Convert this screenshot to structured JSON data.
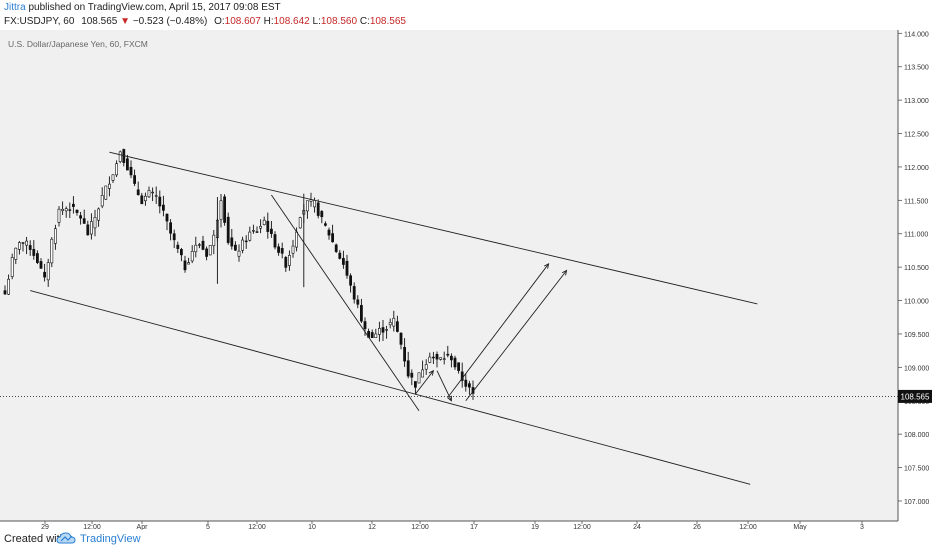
{
  "header": {
    "author": "Jittra",
    "published_text": "published on TradingView.com, April 15, 2017 09:08 EST",
    "symbol": "FX:USDJPY, 60",
    "last": "108.565",
    "change_arrow": "▼",
    "change": "−0.523 (−0.48%)",
    "o_label": "O:",
    "o": "108.607",
    "h_label": "H:",
    "h": "108.642",
    "l_label": "L:",
    "l": "108.560",
    "c_label": "C:",
    "c": "108.565"
  },
  "footer": {
    "created_with": "Created with",
    "brand": "TradingView",
    "logo_icon": "tradingview-cloud-icon"
  },
  "colors": {
    "background": "#f0f0f0",
    "candle": "#111111",
    "accent_blue": "#2a7fd4",
    "negative": "#c62828"
  },
  "chart_data": {
    "type": "candlestick",
    "title": "U.S. Dollar/Japanese Yen, 60, FXCM",
    "ylim": [
      106.7,
      114.05
    ],
    "y_ticks": [
      "114.000",
      "113.500",
      "113.000",
      "112.500",
      "112.000",
      "111.500",
      "111.000",
      "110.500",
      "110.000",
      "109.500",
      "109.000",
      "108.500",
      "108.000",
      "107.500",
      "107.000"
    ],
    "x_ticks": [
      "29",
      "12:00",
      "Apr",
      "5",
      "12:00",
      "10",
      "12",
      "12:00",
      "17",
      "19",
      "12:00",
      "24",
      "26",
      "12:00",
      "May",
      "3"
    ],
    "last_price_label": "108.565",
    "last_price": 108.565,
    "price_path": [
      [
        0,
        110.1
      ],
      [
        2,
        110.6
      ],
      [
        4,
        110.9
      ],
      [
        7,
        110.8
      ],
      [
        9,
        110.6
      ],
      [
        11,
        110.3
      ],
      [
        13,
        110.9
      ],
      [
        15,
        111.35
      ],
      [
        18,
        111.4
      ],
      [
        21,
        111.25
      ],
      [
        23,
        111.0
      ],
      [
        25,
        111.25
      ],
      [
        27,
        111.55
      ],
      [
        29,
        111.8
      ],
      [
        31,
        112.05
      ],
      [
        32,
        112.25
      ],
      [
        34,
        112.0
      ],
      [
        36,
        111.7
      ],
      [
        38,
        111.5
      ],
      [
        40,
        111.6
      ],
      [
        42,
        111.55
      ],
      [
        44,
        111.3
      ],
      [
        46,
        111.0
      ],
      [
        48,
        110.75
      ],
      [
        50,
        110.5
      ],
      [
        52,
        110.75
      ],
      [
        54,
        110.85
      ],
      [
        56,
        110.7
      ],
      [
        58,
        110.95
      ],
      [
        60,
        111.55
      ],
      [
        62,
        110.9
      ],
      [
        64,
        110.7
      ],
      [
        66,
        110.85
      ],
      [
        68,
        111.0
      ],
      [
        70,
        111.05
      ],
      [
        72,
        111.2
      ],
      [
        74,
        110.95
      ],
      [
        76,
        110.75
      ],
      [
        78,
        110.55
      ],
      [
        80,
        110.85
      ],
      [
        82,
        111.3
      ],
      [
        84,
        111.45
      ],
      [
        86,
        111.45
      ],
      [
        88,
        111.2
      ],
      [
        90,
        111.0
      ],
      [
        92,
        110.75
      ],
      [
        94,
        110.55
      ],
      [
        96,
        110.2
      ],
      [
        98,
        109.9
      ],
      [
        100,
        109.55
      ],
      [
        102,
        109.45
      ],
      [
        104,
        109.55
      ],
      [
        106,
        109.6
      ],
      [
        108,
        109.7
      ],
      [
        110,
        109.35
      ],
      [
        112,
        108.9
      ],
      [
        114,
        108.75
      ],
      [
        116,
        109.0
      ],
      [
        118,
        109.2
      ],
      [
        120,
        109.1
      ],
      [
        122,
        109.15
      ],
      [
        124,
        109.15
      ],
      [
        126,
        108.9
      ],
      [
        128,
        108.75
      ],
      [
        130,
        108.58
      ]
    ],
    "price_x_units": "hourly candles (index)",
    "drawings": {
      "upper_channel": [
        [
          29,
          112.22
        ],
        [
          209,
          109.95
        ]
      ],
      "lower_channel": [
        [
          7,
          110.15
        ],
        [
          207,
          107.25
        ]
      ],
      "wedge_line": [
        [
          74,
          111.58
        ],
        [
          115,
          108.35
        ]
      ],
      "arrow_1": [
        [
          114,
          108.6
        ],
        [
          119,
          108.95
        ]
      ],
      "arrow_2": [
        [
          120,
          108.95
        ],
        [
          124,
          108.5
        ]
      ],
      "arrow_3": [
        [
          123,
          108.55
        ],
        [
          151,
          110.55
        ]
      ],
      "arrow_4": [
        [
          128,
          108.5
        ],
        [
          156,
          110.45
        ]
      ]
    }
  }
}
